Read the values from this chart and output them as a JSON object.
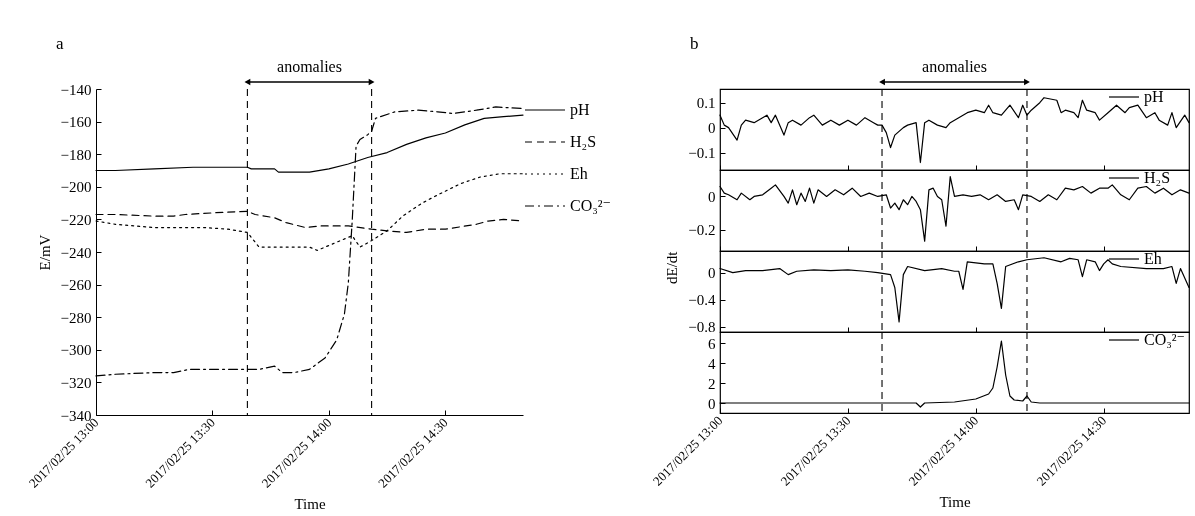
{
  "chart_data": [
    {
      "type": "line",
      "title": "a",
      "xlabel": "Time",
      "ylabel": "E/mV",
      "legend": "right",
      "annotations": [
        "anomalies"
      ],
      "xlim": [
        "2017-02-25T13:00",
        "2017-02-25T14:50"
      ],
      "xticks": [
        {
          "value": "2017-02-25T13:00",
          "label": "2017/02/25 13:00"
        },
        {
          "value": "2017-02-25T13:30",
          "label": "2017/02/25 13:30"
        },
        {
          "value": "2017-02-25T14:00",
          "label": "2017/02/25 14:00"
        },
        {
          "value": "2017-02-25T14:30",
          "label": "2017/02/25 14:30"
        }
      ],
      "ylim": [
        -340,
        -140
      ],
      "yticks": [
        -340,
        -320,
        -300,
        -280,
        -260,
        -240,
        -220,
        -200,
        -180,
        -160,
        -140
      ],
      "ref_lines": [
        {
          "axis": "x",
          "value": "2017-02-25T13:39",
          "line_style": "dashed",
          "color": "#000000"
        },
        {
          "axis": "x",
          "value": "2017-02-25T14:11",
          "line_style": "dashed",
          "color": "#000000"
        }
      ],
      "series": [
        {
          "name": "pH",
          "color": "#000000",
          "line_style": "solid",
          "x": [
            "2017-02-25T13:00",
            "2017-02-25T13:05",
            "2017-02-25T13:15",
            "2017-02-25T13:25",
            "2017-02-25T13:35",
            "2017-02-25T13:39",
            "2017-02-25T13:40",
            "2017-02-25T13:46",
            "2017-02-25T13:47",
            "2017-02-25T13:55",
            "2017-02-25T14:00",
            "2017-02-25T14:05",
            "2017-02-25T14:10",
            "2017-02-25T14:15",
            "2017-02-25T14:20",
            "2017-02-25T14:25",
            "2017-02-25T14:30",
            "2017-02-25T14:35",
            "2017-02-25T14:40",
            "2017-02-25T14:45",
            "2017-02-25T14:50"
          ],
          "values": [
            -190,
            -190,
            -189,
            -188,
            -188,
            -188,
            -189,
            -189,
            -191,
            -191,
            -189,
            -186,
            -182,
            -179,
            -174,
            -170,
            -167,
            -162,
            -158,
            -157,
            -156
          ]
        },
        {
          "name": "H₂S",
          "color": "#000000",
          "line_style": "dashed",
          "x": [
            "2017-02-25T13:00",
            "2017-02-25T13:05",
            "2017-02-25T13:15",
            "2017-02-25T13:20",
            "2017-02-25T13:23",
            "2017-02-25T13:30",
            "2017-02-25T13:39",
            "2017-02-25T13:41",
            "2017-02-25T13:46",
            "2017-02-25T13:49",
            "2017-02-25T13:54",
            "2017-02-25T13:58",
            "2017-02-25T14:05",
            "2017-02-25T14:11",
            "2017-02-25T14:15",
            "2017-02-25T14:20",
            "2017-02-25T14:25",
            "2017-02-25T14:30",
            "2017-02-25T14:38",
            "2017-02-25T14:41",
            "2017-02-25T14:45",
            "2017-02-25T14:50"
          ],
          "values": [
            -217,
            -217,
            -218,
            -218,
            -217,
            -216,
            -215,
            -217,
            -219,
            -222,
            -225,
            -224,
            -224,
            -226,
            -227,
            -228,
            -226,
            -226,
            -223,
            -221,
            -220,
            -221
          ]
        },
        {
          "name": "Eh",
          "color": "#000000",
          "line_style": "dotted",
          "x": [
            "2017-02-25T13:00",
            "2017-02-25T13:05",
            "2017-02-25T13:15",
            "2017-02-25T13:20",
            "2017-02-25T13:28",
            "2017-02-25T13:34",
            "2017-02-25T13:39",
            "2017-02-25T13:42",
            "2017-02-25T13:47",
            "2017-02-25T13:55",
            "2017-02-25T13:57",
            "2017-02-25T14:01",
            "2017-02-25T14:06",
            "2017-02-25T14:08",
            "2017-02-25T14:11",
            "2017-02-25T14:15",
            "2017-02-25T14:19",
            "2017-02-25T14:24",
            "2017-02-25T14:28",
            "2017-02-25T14:34",
            "2017-02-25T14:39",
            "2017-02-25T14:44",
            "2017-02-25T14:50"
          ],
          "values": [
            -221,
            -223,
            -225,
            -225,
            -225,
            -226,
            -228,
            -237,
            -237,
            -237,
            -239,
            -235,
            -230,
            -237,
            -233,
            -227,
            -218,
            -210,
            -205,
            -198,
            -194,
            -192,
            -192
          ]
        },
        {
          "name": "CO₃²⁻",
          "color": "#000000",
          "line_style": "dashdot",
          "x": [
            "2017-02-25T13:00",
            "2017-02-25T13:05",
            "2017-02-25T13:15",
            "2017-02-25T13:20",
            "2017-02-25T13:24",
            "2017-02-25T13:30",
            "2017-02-25T13:39",
            "2017-02-25T13:42",
            "2017-02-25T13:46",
            "2017-02-25T13:48",
            "2017-02-25T13:51",
            "2017-02-25T13:55",
            "2017-02-25T13:59",
            "2017-02-25T14:02",
            "2017-02-25T14:04",
            "2017-02-25T14:05",
            "2017-02-25T14:06",
            "2017-02-25T14:07",
            "2017-02-25T14:08",
            "2017-02-25T14:10",
            "2017-02-25T14:11",
            "2017-02-25T14:12",
            "2017-02-25T14:17",
            "2017-02-25T14:23",
            "2017-02-25T14:28",
            "2017-02-25T14:32",
            "2017-02-25T14:38",
            "2017-02-25T14:43",
            "2017-02-25T14:50"
          ],
          "values": [
            -316,
            -315,
            -314,
            -314,
            -312,
            -312,
            -312,
            -312,
            -310,
            -314,
            -314,
            -312,
            -305,
            -294,
            -278,
            -259,
            -221,
            -175,
            -171,
            -168,
            -166,
            -158,
            -154,
            -153,
            -154,
            -155,
            -153,
            -151,
            -152
          ]
        }
      ]
    },
    {
      "type": "line",
      "title": "b",
      "legend": "top right",
      "tick_labels": "y",
      "annotations": [
        "anomalies"
      ],
      "xlim": [
        "2017-02-25T13:00",
        "2017-02-25T14:50"
      ],
      "xticks": [
        {
          "value": "2017-02-25T13:00",
          "label": null
        },
        {
          "value": "2017-02-25T13:30",
          "label": null
        },
        {
          "value": "2017-02-25T14:00",
          "label": null
        },
        {
          "value": "2017-02-25T14:30",
          "label": null
        }
      ],
      "ylim": [
        -0.17,
        0.155
      ],
      "yticks": [
        -0.1,
        0,
        0.1
      ],
      "ref_lines": [
        {
          "axis": "x",
          "value": "2017-02-25T13:38",
          "line_style": "dashed",
          "color": "#000000"
        },
        {
          "axis": "x",
          "value": "2017-02-25T14:12",
          "line_style": "dashed",
          "color": "#000000"
        }
      ],
      "series": [
        {
          "name": "pH",
          "color": "#000000",
          "x": [
            "2017-02-25T13:00",
            "2017-02-25T13:01",
            "2017-02-25T13:02",
            "2017-02-25T13:04",
            "2017-02-25T13:05",
            "2017-02-25T13:06",
            "2017-02-25T13:08",
            "2017-02-25T13:10",
            "2017-02-25T13:11",
            "2017-02-25T13:12",
            "2017-02-25T13:13",
            "2017-02-25T13:15",
            "2017-02-25T13:16",
            "2017-02-25T13:17",
            "2017-02-25T13:19",
            "2017-02-25T13:21",
            "2017-02-25T13:22",
            "2017-02-25T13:24",
            "2017-02-25T13:26",
            "2017-02-25T13:28",
            "2017-02-25T13:30",
            "2017-02-25T13:32",
            "2017-02-25T13:34",
            "2017-02-25T13:36",
            "2017-02-25T13:37",
            "2017-02-25T13:38",
            "2017-02-25T13:39",
            "2017-02-25T13:40",
            "2017-02-25T13:41",
            "2017-02-25T13:43",
            "2017-02-25T13:44",
            "2017-02-25T13:46",
            "2017-02-25T13:47",
            "2017-02-25T13:48",
            "2017-02-25T13:49",
            "2017-02-25T13:51",
            "2017-02-25T13:53",
            "2017-02-25T13:54",
            "2017-02-25T13:56",
            "2017-02-25T13:58",
            "2017-02-25T14:00",
            "2017-02-25T14:02",
            "2017-02-25T14:03",
            "2017-02-25T14:04",
            "2017-02-25T14:06",
            "2017-02-25T14:08",
            "2017-02-25T14:10",
            "2017-02-25T14:11",
            "2017-02-25T14:12",
            "2017-02-25T14:13",
            "2017-02-25T14:15",
            "2017-02-25T14:16",
            "2017-02-25T14:19",
            "2017-02-25T14:20",
            "2017-02-25T14:21",
            "2017-02-25T14:23",
            "2017-02-25T14:24",
            "2017-02-25T14:25",
            "2017-02-25T14:26",
            "2017-02-25T14:28",
            "2017-02-25T14:29",
            "2017-02-25T14:31",
            "2017-02-25T14:33",
            "2017-02-25T14:35",
            "2017-02-25T14:36",
            "2017-02-25T14:38",
            "2017-02-25T14:40",
            "2017-02-25T14:42",
            "2017-02-25T14:43",
            "2017-02-25T14:45",
            "2017-02-25T14:46",
            "2017-02-25T14:47",
            "2017-02-25T14:49",
            "2017-02-25T14:50"
          ],
          "values": [
            0.05,
            0.01,
            0,
            -0.05,
            0.01,
            0.03,
            0.02,
            0.04,
            0.05,
            0.02,
            0.05,
            -0.03,
            0.02,
            0.03,
            0.01,
            0.04,
            0.05,
            0.01,
            0.03,
            0.01,
            0.03,
            0.01,
            0.04,
            0.02,
            0.01,
            0.01,
            -0.02,
            -0.08,
            -0.03,
            0,
            0.01,
            0.02,
            -0.14,
            0.02,
            0.03,
            0.01,
            0,
            0.02,
            0.04,
            0.06,
            0.07,
            0.06,
            0.09,
            0.06,
            0.05,
            0.09,
            0.04,
            0.09,
            0.05,
            0.07,
            0.1,
            0.12,
            0.11,
            0.06,
            0.07,
            0.06,
            0.04,
            0.11,
            0.07,
            0.06,
            0.03,
            0.06,
            0.09,
            0.06,
            0.08,
            0.09,
            0.04,
            0.06,
            0.03,
            0.01,
            0.06,
            0,
            0.05,
            0.02
          ]
        }
      ]
    },
    {
      "type": "line",
      "legend": "top right",
      "tick_labels": "y",
      "xlim": [
        "2017-02-25T13:00",
        "2017-02-25T14:50"
      ],
      "xticks": [
        {
          "value": "2017-02-25T13:00",
          "label": null
        },
        {
          "value": "2017-02-25T13:30",
          "label": null
        },
        {
          "value": "2017-02-25T14:00",
          "label": null
        },
        {
          "value": "2017-02-25T14:30",
          "label": null
        }
      ],
      "ylim": [
        -0.33,
        0.16
      ],
      "yticks": [
        -0.2,
        0
      ],
      "ref_lines": [
        {
          "axis": "x",
          "value": "2017-02-25T13:38",
          "line_style": "dashed",
          "color": "#000000"
        },
        {
          "axis": "x",
          "value": "2017-02-25T14:12",
          "line_style": "dashed",
          "color": "#000000"
        }
      ],
      "series": [
        {
          "name": "H₂S",
          "color": "#000000",
          "x": [
            "2017-02-25T13:00",
            "2017-02-25T13:01",
            "2017-02-25T13:02",
            "2017-02-25T13:04",
            "2017-02-25T13:05",
            "2017-02-25T13:07",
            "2017-02-25T13:08",
            "2017-02-25T13:10",
            "2017-02-25T13:12",
            "2017-02-25T13:13",
            "2017-02-25T13:15",
            "2017-02-25T13:16",
            "2017-02-25T13:17",
            "2017-02-25T13:18",
            "2017-02-25T13:19",
            "2017-02-25T13:20",
            "2017-02-25T13:21",
            "2017-02-25T13:22",
            "2017-02-25T13:23",
            "2017-02-25T13:25",
            "2017-02-25T13:27",
            "2017-02-25T13:29",
            "2017-02-25T13:31",
            "2017-02-25T13:33",
            "2017-02-25T13:35",
            "2017-02-25T13:37",
            "2017-02-25T13:39",
            "2017-02-25T13:40",
            "2017-02-25T13:41",
            "2017-02-25T13:42",
            "2017-02-25T13:43",
            "2017-02-25T13:44",
            "2017-02-25T13:45",
            "2017-02-25T13:46",
            "2017-02-25T13:47",
            "2017-02-25T13:48",
            "2017-02-25T13:49",
            "2017-02-25T13:50",
            "2017-02-25T13:51",
            "2017-02-25T13:52",
            "2017-02-25T13:53",
            "2017-02-25T13:54",
            "2017-02-25T13:55",
            "2017-02-25T13:57",
            "2017-02-25T13:59",
            "2017-02-25T14:01",
            "2017-02-25T14:03",
            "2017-02-25T14:05",
            "2017-02-25T14:07",
            "2017-02-25T14:09",
            "2017-02-25T14:10",
            "2017-02-25T14:11",
            "2017-02-25T14:13",
            "2017-02-25T14:15",
            "2017-02-25T14:17",
            "2017-02-25T14:19",
            "2017-02-25T14:21",
            "2017-02-25T14:23",
            "2017-02-25T14:25",
            "2017-02-25T14:27",
            "2017-02-25T14:29",
            "2017-02-25T14:31",
            "2017-02-25T14:32",
            "2017-02-25T14:34",
            "2017-02-25T14:36",
            "2017-02-25T14:38",
            "2017-02-25T14:40",
            "2017-02-25T14:42",
            "2017-02-25T14:44",
            "2017-02-25T14:46",
            "2017-02-25T14:48",
            "2017-02-25T14:50"
          ],
          "values": [
            0.06,
            0.02,
            0.01,
            -0.02,
            0.02,
            -0.02,
            0,
            0.01,
            0.05,
            0.07,
            0,
            -0.04,
            0.04,
            -0.05,
            0.02,
            -0.03,
            0.05,
            -0.04,
            0.04,
            0,
            0.04,
            0.01,
            0.05,
            0,
            0.02,
            0,
            0.01,
            -0.07,
            -0.04,
            -0.08,
            -0.02,
            -0.05,
            0,
            -0.03,
            -0.08,
            -0.27,
            0.04,
            0.05,
            0,
            -0.02,
            -0.18,
            0.12,
            0,
            0.01,
            0,
            0.01,
            -0.02,
            0.01,
            -0.03,
            -0.02,
            -0.08,
            0.01,
            0,
            -0.03,
            0.01,
            -0.02,
            0.05,
            0.04,
            0.06,
            0.02,
            0.05,
            0.05,
            0.07,
            0.01,
            -0.02,
            0.05,
            0.06,
            0.02,
            0.05,
            0.01,
            0.04,
            0.02
          ]
        }
      ]
    },
    {
      "type": "line",
      "ylabel": "dE/dt",
      "legend": "top right",
      "tick_labels": "y",
      "xlim": [
        "2017-02-25T13:00",
        "2017-02-25T14:50"
      ],
      "xticks": [
        {
          "value": "2017-02-25T13:00",
          "label": null
        },
        {
          "value": "2017-02-25T13:30",
          "label": null
        },
        {
          "value": "2017-02-25T14:00",
          "label": null
        },
        {
          "value": "2017-02-25T14:30",
          "label": null
        }
      ],
      "ylim": [
        -0.88,
        0.32
      ],
      "yticks": [
        -0.8,
        -0.4,
        0
      ],
      "ref_lines": [
        {
          "axis": "x",
          "value": "2017-02-25T13:38",
          "line_style": "dashed",
          "color": "#000000"
        },
        {
          "axis": "x",
          "value": "2017-02-25T14:12",
          "line_style": "dashed",
          "color": "#000000"
        }
      ],
      "series": [
        {
          "name": "Eh",
          "color": "#000000",
          "x": [
            "2017-02-25T13:00",
            "2017-02-25T13:03",
            "2017-02-25T13:06",
            "2017-02-25T13:10",
            "2017-02-25T13:14",
            "2017-02-25T13:16",
            "2017-02-25T13:18",
            "2017-02-25T13:22",
            "2017-02-25T13:26",
            "2017-02-25T13:30",
            "2017-02-25T13:34",
            "2017-02-25T13:37",
            "2017-02-25T13:40",
            "2017-02-25T13:41",
            "2017-02-25T13:42",
            "2017-02-25T13:43",
            "2017-02-25T13:44",
            "2017-02-25T13:48",
            "2017-02-25T13:52",
            "2017-02-25T13:55",
            "2017-02-25T13:56",
            "2017-02-25T13:57",
            "2017-02-25T13:58",
            "2017-02-25T14:02",
            "2017-02-25T14:04",
            "2017-02-25T14:05",
            "2017-02-25T14:06",
            "2017-02-25T14:07",
            "2017-02-25T14:10",
            "2017-02-25T14:12",
            "2017-02-25T14:16",
            "2017-02-25T14:20",
            "2017-02-25T14:22",
            "2017-02-25T14:24",
            "2017-02-25T14:25",
            "2017-02-25T14:26",
            "2017-02-25T14:28",
            "2017-02-25T14:29",
            "2017-02-25T14:30",
            "2017-02-25T14:31",
            "2017-02-25T14:32",
            "2017-02-25T14:34",
            "2017-02-25T14:40",
            "2017-02-25T14:44",
            "2017-02-25T14:46",
            "2017-02-25T14:47",
            "2017-02-25T14:48",
            "2017-02-25T14:50"
          ],
          "values": [
            0.06,
            0,
            0.03,
            0.03,
            0.06,
            -0.03,
            0.02,
            0.04,
            0.03,
            0.04,
            0.02,
            0,
            -0.03,
            -0.22,
            -0.73,
            -0.03,
            0.09,
            0.03,
            0.06,
            0.02,
            0.02,
            -0.25,
            0.16,
            0.13,
            0.13,
            -0.16,
            -0.53,
            0.09,
            0.16,
            0.19,
            0.22,
            0.16,
            0.21,
            0.19,
            -0.06,
            0.19,
            0.16,
            0.03,
            0.13,
            0.19,
            0.13,
            0.09,
            0.06,
            0.06,
            0.09,
            -0.16,
            0.06,
            -0.22
          ]
        }
      ]
    },
    {
      "type": "line",
      "xlabel": "Time",
      "legend": "top right",
      "xlim": [
        "2017-02-25T13:00",
        "2017-02-25T14:50"
      ],
      "xticks": [
        {
          "value": "2017-02-25T13:00",
          "label": "2017/02/25 13:00"
        },
        {
          "value": "2017-02-25T13:30",
          "label": "2017/02/25 13:30"
        },
        {
          "value": "2017-02-25T14:00",
          "label": "2017/02/25 14:00"
        },
        {
          "value": "2017-02-25T14:30",
          "label": "2017/02/25 14:30"
        }
      ],
      "ylim": [
        -1,
        7.1
      ],
      "yticks": [
        0,
        2,
        4,
        6
      ],
      "ref_lines": [
        {
          "axis": "x",
          "value": "2017-02-25T13:38",
          "line_style": "dashed",
          "color": "#000000"
        },
        {
          "axis": "x",
          "value": "2017-02-25T14:12",
          "line_style": "dashed",
          "color": "#000000"
        }
      ],
      "series": [
        {
          "name": "CO₃²⁻",
          "color": "#000000",
          "x": [
            "2017-02-25T13:00",
            "2017-02-25T13:20",
            "2017-02-25T13:40",
            "2017-02-25T13:46",
            "2017-02-25T13:47",
            "2017-02-25T13:48",
            "2017-02-25T13:55",
            "2017-02-25T14:00",
            "2017-02-25T14:03",
            "2017-02-25T14:04",
            "2017-02-25T14:05",
            "2017-02-25T14:06",
            "2017-02-25T14:07",
            "2017-02-25T14:08",
            "2017-02-25T14:09",
            "2017-02-25T14:11",
            "2017-02-25T14:12",
            "2017-02-25T14:13",
            "2017-02-25T14:15",
            "2017-02-25T14:30",
            "2017-02-25T14:50"
          ],
          "values": [
            0,
            0,
            0,
            0,
            -0.4,
            0,
            0.1,
            0.4,
            0.9,
            1.5,
            3.6,
            6.2,
            2.8,
            0.7,
            0.3,
            0.2,
            0.7,
            0.1,
            0,
            0,
            0
          ]
        }
      ]
    }
  ]
}
